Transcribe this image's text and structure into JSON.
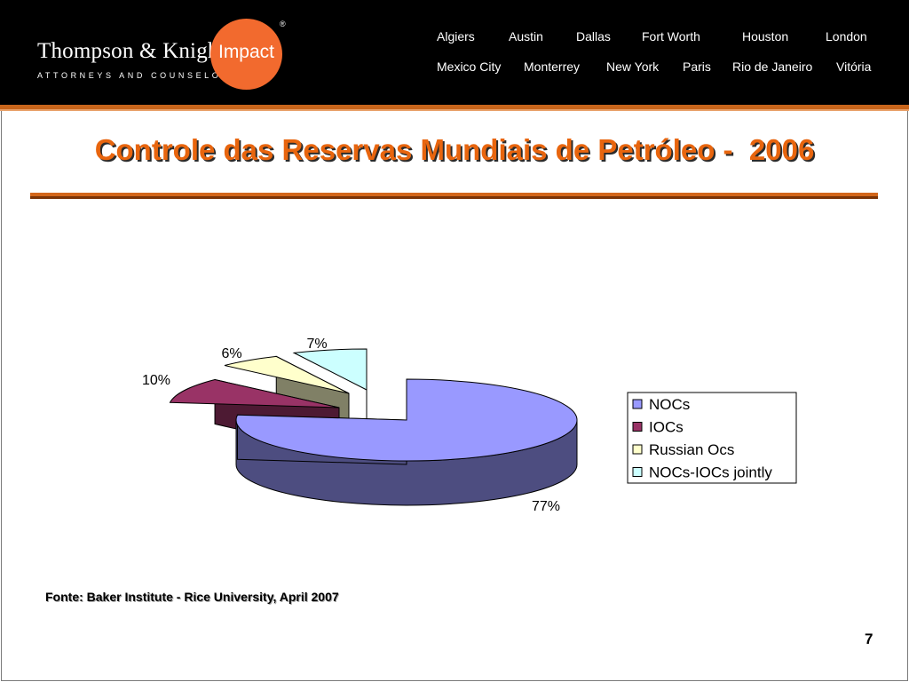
{
  "brand": {
    "name": "Thompson & Knight",
    "tagline": "ATTORNEYS AND COUNSELORS",
    "impact": "Impact",
    "registered": "®",
    "orange": "#f26a2e"
  },
  "cities": {
    "row1": [
      "Algiers",
      "Austin",
      "Dallas",
      "Fort Worth",
      "Houston",
      "London"
    ],
    "row2": [
      "Mexico City",
      "Monterrey",
      "New York",
      "Paris",
      "Rio de Janeiro",
      "Vitória"
    ]
  },
  "slide": {
    "title": "Controle das Reservas Mundiais de Petróleo -  2006",
    "source": "Fonte: Baker Institute - Rice University, April 2007",
    "page_number": "7",
    "title_color": "#e8650e"
  },
  "chart_data": {
    "type": "pie",
    "title": "",
    "categories": [
      "NOCs",
      "IOCs",
      "Russian Ocs",
      "NOCs-IOCs jointly"
    ],
    "values": [
      77,
      10,
      6,
      7
    ],
    "labels": [
      "77%",
      "10%",
      "6%",
      "7%"
    ],
    "colors": [
      "#9999ff",
      "#993366",
      "#ffffcc",
      "#ccffff"
    ],
    "side_colors": [
      "#4d4d80",
      "#4d1a33",
      "#808066",
      "#668080"
    ],
    "legend_position": "right",
    "exploded": true,
    "three_d": true
  }
}
